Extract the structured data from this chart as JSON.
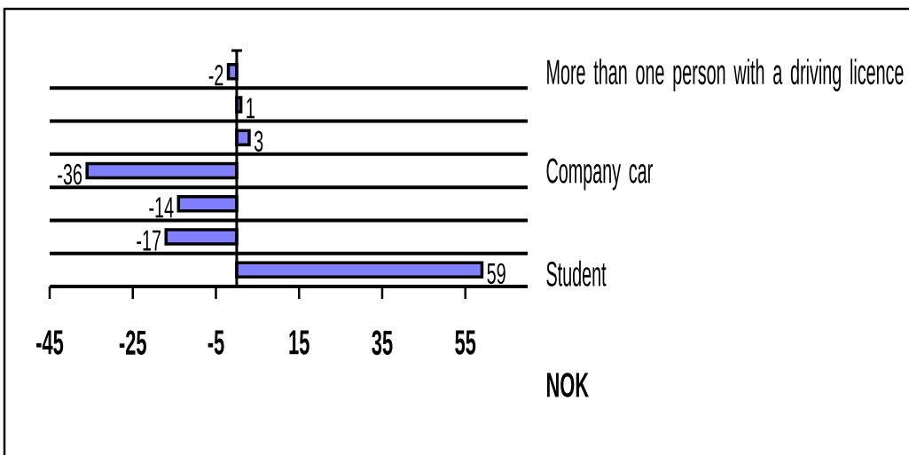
{
  "chart_data": {
    "type": "bar",
    "orientation": "horizontal",
    "categories": [
      "More than one person with a driving licence",
      null,
      null,
      "Company car",
      null,
      null,
      "Student"
    ],
    "values": [
      -2,
      1,
      3,
      -36,
      -14,
      -17,
      59
    ],
    "color": "#8080ff",
    "xlabel": "NOK",
    "xlim": [
      -45,
      70
    ],
    "xticks": [
      -45,
      -25,
      -5,
      15,
      35,
      55
    ],
    "grid": "y",
    "data_labels": true
  }
}
